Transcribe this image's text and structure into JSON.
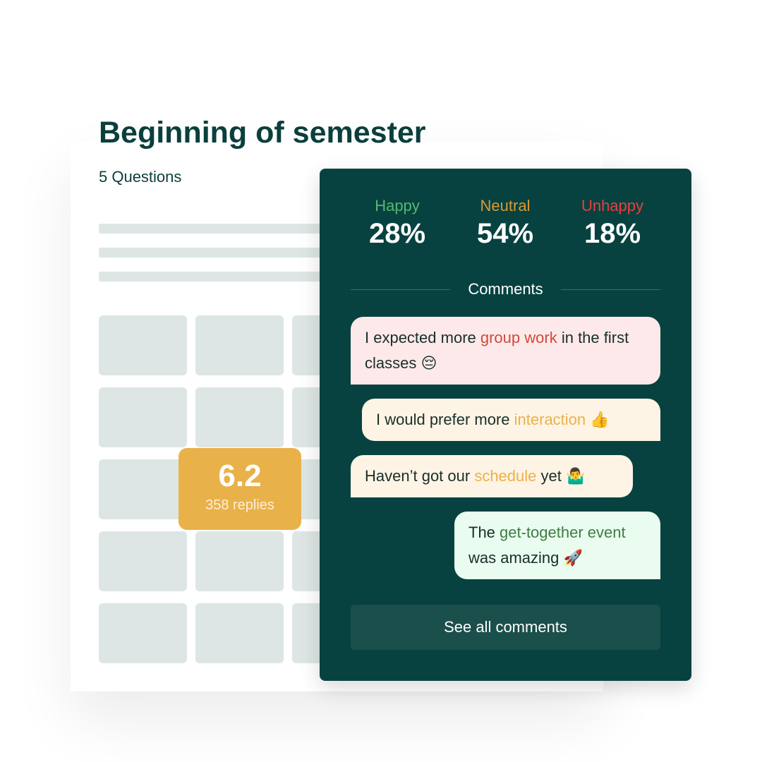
{
  "survey": {
    "title": "Beginning of semester",
    "subtitle": "5 Questions"
  },
  "score": {
    "value": "6.2",
    "replies": "358 replies"
  },
  "sentiment": [
    {
      "label": "Happy",
      "percent": "28%",
      "color": "#56b872"
    },
    {
      "label": "Neutral",
      "percent": "54%",
      "color": "#d99a36"
    },
    {
      "label": "Unhappy",
      "percent": "18%",
      "color": "#e5413f"
    }
  ],
  "comments_heading": "Comments",
  "comments": [
    {
      "before": "I expected more ",
      "highlight": "group work",
      "after": " in the first classes",
      "emoji": "😔",
      "bg": "#fde9ea",
      "hl_color": "#cf4a3b"
    },
    {
      "before": "I would prefer more ",
      "highlight": "interaction",
      "after": "",
      "emoji": "👍",
      "bg": "#fdf4e5",
      "hl_color": "#ecb04a"
    },
    {
      "before": "Haven’t got our ",
      "highlight": "schedule",
      "after": " yet",
      "emoji": "🤷‍♂️",
      "bg": "#fdf4e5",
      "hl_color": "#ecb04a"
    },
    {
      "before": "The ",
      "highlight": "get-together event",
      "after": " was amazing",
      "emoji": "🚀",
      "bg": "#e9fcef",
      "hl_color": "#3f7d44"
    }
  ],
  "see_all_label": "See all comments"
}
